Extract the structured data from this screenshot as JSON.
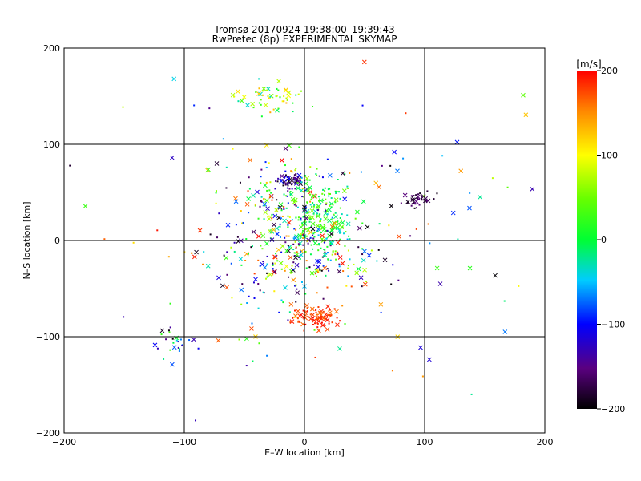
{
  "chart_data": {
    "type": "scatter",
    "title_line1": "Tromsø 20170924 19:38:00–19:39:43",
    "title_line2": "RwPretec (8p) EXPERIMENTAL SKYMAP",
    "xlabel": "E–W location [km]",
    "ylabel": "N–S location [km]",
    "xlim": [
      -200,
      200
    ],
    "ylim": [
      -200,
      200
    ],
    "x_ticks": [
      -200,
      -100,
      0,
      100,
      200
    ],
    "y_ticks": [
      -200,
      -100,
      0,
      100,
      200
    ],
    "grid_lines": [
      -100,
      0,
      100
    ],
    "grid": true,
    "marker_types": [
      "dot",
      "x"
    ],
    "colorbar": {
      "label": "[m/s]",
      "range": [
        -200,
        200
      ],
      "ticks": [
        200,
        100,
        0,
        -100,
        -200
      ],
      "colormap": "black-purple-blue-cyan-green-yellow-red"
    },
    "clusters": [
      {
        "x": -12,
        "y": 62,
        "sx": 6,
        "sy": 4,
        "count": 60,
        "vmin": -200,
        "vmax": -80
      },
      {
        "x": 10,
        "y": -80,
        "sx": 10,
        "sy": 6,
        "count": 90,
        "vmin": 160,
        "vmax": 200
      },
      {
        "x": 96,
        "y": 42,
        "sx": 7,
        "sy": 4,
        "count": 40,
        "vmin": -200,
        "vmax": -150
      },
      {
        "x": -30,
        "y": 150,
        "sx": 14,
        "sy": 8,
        "count": 55,
        "vmin": -40,
        "vmax": 140
      },
      {
        "x": 10,
        "y": 25,
        "sx": 16,
        "sy": 20,
        "count": 200,
        "vmin": -40,
        "vmax": 60
      },
      {
        "x": -25,
        "y": 40,
        "sx": 25,
        "sy": 25,
        "count": 150,
        "vmin": -200,
        "vmax": 200
      },
      {
        "x": 0,
        "y": -20,
        "sx": 30,
        "sy": 20,
        "count": 200,
        "vmin": -200,
        "vmax": 200
      },
      {
        "x": -110,
        "y": -105,
        "sx": 8,
        "sy": 10,
        "count": 25,
        "vmin": -200,
        "vmax": 40
      },
      {
        "x": 0,
        "y": 0,
        "sx": 100,
        "sy": 90,
        "count": 150,
        "vmin": -200,
        "vmax": 200
      }
    ]
  }
}
